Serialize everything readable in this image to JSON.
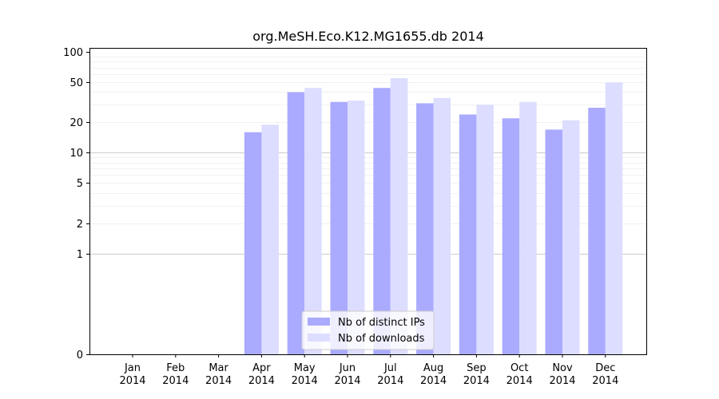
{
  "chart_data": {
    "type": "bar",
    "title": "org.MeSH.Eco.K12.MG1655.db 2014",
    "xlabel": "",
    "ylabel": "",
    "yscale": "symlog",
    "ylim": [
      0,
      110
    ],
    "yticks": [
      0,
      1,
      2,
      5,
      10,
      20,
      50,
      100
    ],
    "grid": true,
    "legend_position": "bottom-center",
    "categories": [
      [
        "Jan",
        "2014"
      ],
      [
        "Feb",
        "2014"
      ],
      [
        "Mar",
        "2014"
      ],
      [
        "Apr",
        "2014"
      ],
      [
        "May",
        "2014"
      ],
      [
        "Jun",
        "2014"
      ],
      [
        "Jul",
        "2014"
      ],
      [
        "Aug",
        "2014"
      ],
      [
        "Sep",
        "2014"
      ],
      [
        "Oct",
        "2014"
      ],
      [
        "Nov",
        "2014"
      ],
      [
        "Dec",
        "2014"
      ]
    ],
    "series": [
      {
        "name": "Nb of distinct IPs",
        "color": "#aaaaff",
        "values": [
          0,
          0,
          0,
          16,
          40,
          32,
          44,
          31,
          24,
          22,
          17,
          28
        ]
      },
      {
        "name": "Nb of downloads",
        "color": "#ddddff",
        "values": [
          0,
          0,
          0,
          19,
          44,
          33,
          55,
          35,
          30,
          32,
          21,
          50
        ]
      }
    ]
  }
}
